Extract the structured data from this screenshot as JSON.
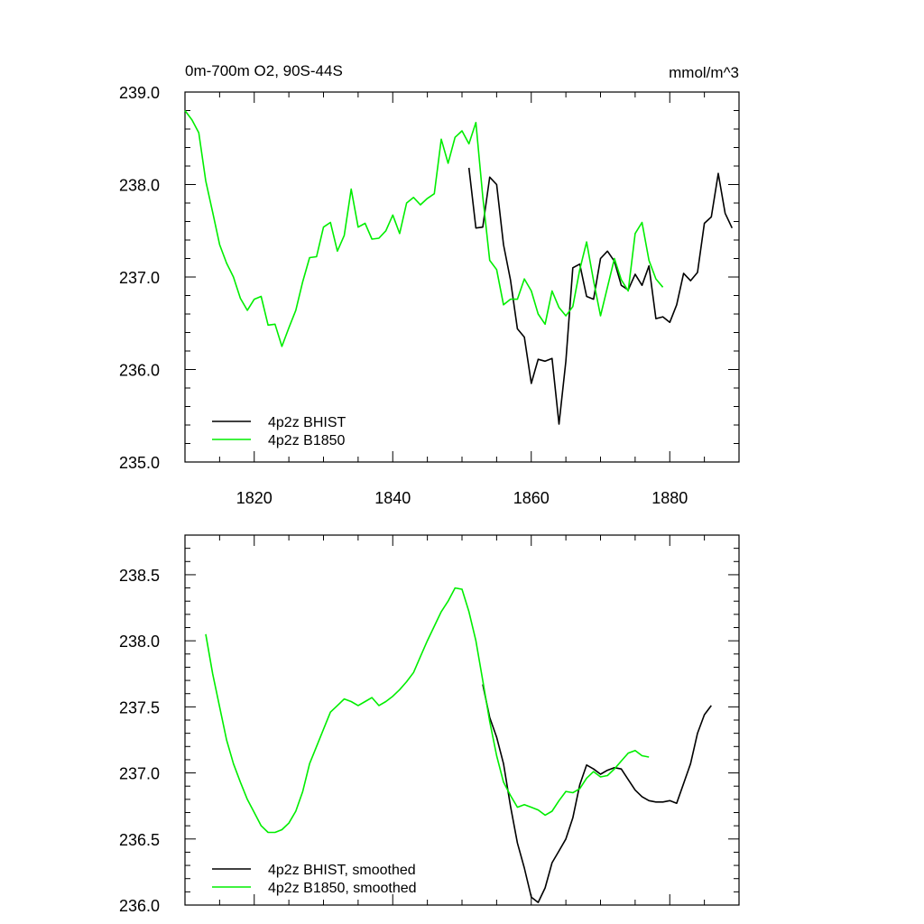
{
  "header": {
    "left_title": "0m-700m O2, 90S-44S",
    "right_title": "mmol/m^3"
  },
  "colors": {
    "bhist": "#000000",
    "b1850": "#00ee00"
  },
  "chart_data": [
    {
      "type": "line",
      "title": "0m-700m O2, 90S-44S",
      "units": "mmol/m^3",
      "xlim": [
        1810,
        1890
      ],
      "ylim": [
        235.0,
        239.0
      ],
      "x_ticks": [
        1820,
        1840,
        1860,
        1880
      ],
      "x_tick_labels": [
        "1820",
        "1840",
        "1860",
        "1880"
      ],
      "y_ticks": [
        235.0,
        236.0,
        237.0,
        238.0,
        239.0
      ],
      "y_tick_labels": [
        "235.0",
        "236.0",
        "237.0",
        "238.0",
        "239.0"
      ],
      "legend_position": "bottom-left",
      "series": [
        {
          "name": "4p2z BHIST",
          "color": "#000000",
          "x": [
            1851,
            1852,
            1853,
            1854,
            1855,
            1856,
            1857,
            1858,
            1859,
            1860,
            1861,
            1862,
            1863,
            1864,
            1865,
            1866,
            1867,
            1868,
            1869,
            1870,
            1871,
            1872,
            1873,
            1874,
            1875,
            1876,
            1877,
            1878,
            1879,
            1880,
            1881,
            1882,
            1883,
            1884,
            1885,
            1886,
            1887,
            1888,
            1889
          ],
          "y": [
            238.18,
            237.53,
            237.54,
            238.08,
            238.0,
            237.35,
            236.97,
            236.44,
            236.35,
            235.85,
            236.11,
            236.09,
            236.12,
            235.41,
            236.09,
            237.1,
            237.14,
            236.79,
            236.76,
            237.2,
            237.28,
            237.17,
            236.91,
            236.86,
            237.03,
            236.91,
            237.12,
            236.55,
            236.57,
            236.51,
            236.7,
            237.04,
            236.96,
            237.05,
            237.58,
            237.65,
            238.12,
            237.69,
            237.53
          ]
        },
        {
          "name": "4p2z B1850",
          "color": "#00ee00",
          "x": [
            1810,
            1811,
            1812,
            1813,
            1814,
            1815,
            1816,
            1817,
            1818,
            1819,
            1820,
            1821,
            1822,
            1823,
            1824,
            1825,
            1826,
            1827,
            1828,
            1829,
            1830,
            1831,
            1832,
            1833,
            1834,
            1835,
            1836,
            1837,
            1838,
            1839,
            1840,
            1841,
            1842,
            1843,
            1844,
            1845,
            1846,
            1847,
            1848,
            1849,
            1850,
            1851,
            1852,
            1853,
            1854,
            1855,
            1856,
            1857,
            1858,
            1859,
            1860,
            1861,
            1862,
            1863,
            1864,
            1865,
            1866,
            1867,
            1868,
            1869,
            1870,
            1871,
            1872,
            1873,
            1874,
            1875,
            1876,
            1877,
            1878,
            1879
          ],
          "y": [
            238.8,
            238.7,
            238.56,
            238.04,
            237.7,
            237.35,
            237.15,
            237.0,
            236.77,
            236.64,
            236.76,
            236.79,
            236.48,
            236.49,
            236.25,
            236.45,
            236.64,
            236.95,
            237.21,
            237.22,
            237.54,
            237.59,
            237.28,
            237.45,
            237.95,
            237.54,
            237.58,
            237.41,
            237.42,
            237.5,
            237.67,
            237.47,
            237.8,
            237.86,
            237.78,
            237.85,
            237.9,
            238.49,
            238.23,
            238.51,
            238.58,
            238.44,
            238.67,
            237.87,
            237.18,
            237.08,
            236.7,
            236.76,
            236.76,
            236.98,
            236.85,
            236.6,
            236.49,
            236.85,
            236.67,
            236.58,
            236.68,
            237.08,
            237.38,
            236.96,
            236.58,
            236.89,
            237.2,
            236.97,
            236.85,
            237.47,
            237.59,
            237.18,
            236.98,
            236.89
          ]
        }
      ]
    },
    {
      "type": "line",
      "xlim": [
        1810,
        1890
      ],
      "ylim": [
        236.0,
        238.8
      ],
      "x_ticks": [
        1820,
        1840,
        1860,
        1880
      ],
      "y_ticks": [
        236.0,
        236.5,
        237.0,
        237.5,
        238.0,
        238.5
      ],
      "y_tick_labels": [
        "236.0",
        "236.5",
        "237.0",
        "237.5",
        "238.0",
        "238.5"
      ],
      "legend_position": "bottom-left",
      "series": [
        {
          "name": "4p2z BHIST, smoothed",
          "color": "#000000",
          "x": [
            1853,
            1854,
            1855,
            1856,
            1857,
            1858,
            1859,
            1860,
            1861,
            1862,
            1863,
            1864,
            1865,
            1866,
            1867,
            1868,
            1869,
            1870,
            1871,
            1872,
            1873,
            1874,
            1875,
            1876,
            1877,
            1878,
            1879,
            1880,
            1881,
            1882,
            1883,
            1884,
            1885,
            1886
          ],
          "y": [
            237.67,
            237.42,
            237.27,
            237.07,
            236.75,
            236.47,
            236.28,
            236.06,
            236.02,
            236.13,
            236.32,
            236.41,
            236.5,
            236.66,
            236.91,
            237.06,
            237.03,
            236.99,
            237.02,
            237.04,
            237.03,
            236.95,
            236.87,
            236.82,
            236.79,
            236.78,
            236.78,
            236.79,
            236.77,
            236.92,
            237.07,
            237.3,
            237.44,
            237.51
          ]
        },
        {
          "name": "4p2z B1850, smoothed",
          "color": "#00ee00",
          "x": [
            1813,
            1814,
            1815,
            1816,
            1817,
            1818,
            1819,
            1820,
            1821,
            1822,
            1823,
            1824,
            1825,
            1826,
            1827,
            1828,
            1829,
            1830,
            1831,
            1832,
            1833,
            1834,
            1835,
            1836,
            1837,
            1838,
            1839,
            1840,
            1841,
            1842,
            1843,
            1844,
            1845,
            1846,
            1847,
            1848,
            1849,
            1850,
            1851,
            1852,
            1853,
            1854,
            1855,
            1856,
            1857,
            1858,
            1859,
            1860,
            1861,
            1862,
            1863,
            1864,
            1865,
            1866,
            1867,
            1868,
            1869,
            1870,
            1871,
            1872,
            1873,
            1874,
            1875,
            1876,
            1877
          ],
          "y": [
            238.05,
            237.75,
            237.5,
            237.25,
            237.07,
            236.93,
            236.8,
            236.7,
            236.6,
            236.55,
            236.55,
            236.57,
            236.62,
            236.71,
            236.86,
            237.07,
            237.2,
            237.33,
            237.46,
            237.51,
            237.56,
            237.54,
            237.51,
            237.54,
            237.57,
            237.51,
            237.54,
            237.58,
            237.63,
            237.69,
            237.76,
            237.88,
            238.0,
            238.11,
            238.22,
            238.3,
            238.4,
            238.39,
            238.22,
            238.0,
            237.7,
            237.39,
            237.13,
            236.93,
            236.83,
            236.74,
            236.76,
            236.74,
            236.72,
            236.68,
            236.71,
            236.79,
            236.86,
            236.85,
            236.88,
            236.96,
            237.01,
            236.97,
            236.98,
            237.03,
            237.09,
            237.15,
            237.17,
            237.13,
            237.12
          ]
        }
      ]
    }
  ]
}
